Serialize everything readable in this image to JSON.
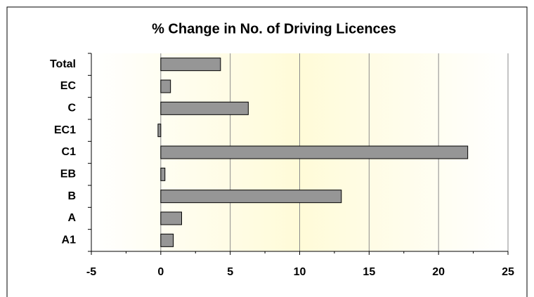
{
  "chart_data": {
    "type": "barh",
    "title": "% Change in No. of Driving Licences",
    "categories": [
      "Total",
      "EC",
      "C",
      "EC1",
      "C1",
      "EB",
      "B",
      "A",
      "A1"
    ],
    "values": [
      4.3,
      0.7,
      6.3,
      -0.2,
      22.1,
      0.3,
      13.0,
      1.5,
      0.9
    ],
    "color": "#969696",
    "xlim": [
      -5,
      25
    ],
    "xticks": [
      -5,
      0,
      5,
      10,
      15,
      20,
      25
    ],
    "grid": true
  }
}
